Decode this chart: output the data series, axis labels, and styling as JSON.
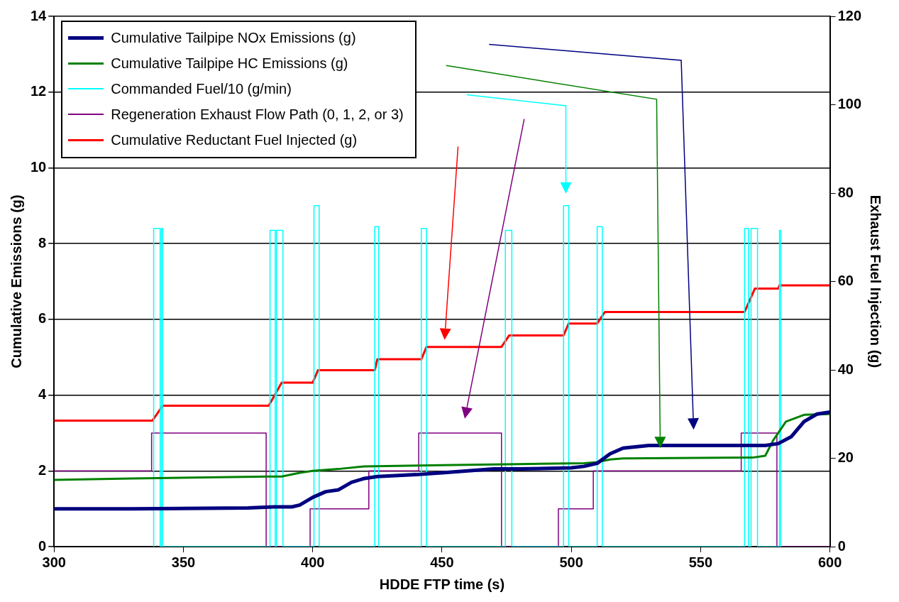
{
  "chart_data": {
    "type": "line",
    "xlabel": "HDDE FTP time (s)",
    "ylabel": "Cumulative Emissions (g)",
    "y2label": "Exhaust Fuel Injection (g)",
    "xlim": [
      300,
      600
    ],
    "xticks": [
      300,
      350,
      400,
      450,
      500,
      550,
      600
    ],
    "ylim": [
      0,
      14
    ],
    "yticks": [
      0,
      2,
      4,
      6,
      8,
      10,
      12,
      14
    ],
    "y2lim": [
      0,
      120
    ],
    "y2ticks": [
      0,
      20,
      40,
      60,
      80,
      100,
      120
    ],
    "grid": "y",
    "legend": "top left",
    "series": [
      {
        "name": "Cumulative Tailpipe NOx Emissions (g)",
        "color": "#000080",
        "x": [
          300,
          330,
          375,
          385,
          392,
          395,
          400,
          405,
          410,
          415,
          420,
          425,
          440,
          450,
          460,
          470,
          480,
          500,
          505,
          510,
          515,
          520,
          530,
          575,
          580,
          585,
          590,
          595,
          600
        ],
        "values": [
          1.0,
          1.0,
          1.02,
          1.05,
          1.05,
          1.1,
          1.3,
          1.45,
          1.5,
          1.7,
          1.8,
          1.85,
          1.9,
          1.95,
          2.0,
          2.05,
          2.05,
          2.08,
          2.12,
          2.2,
          2.45,
          2.6,
          2.67,
          2.67,
          2.72,
          2.9,
          3.3,
          3.5,
          3.55
        ]
      },
      {
        "name": "Cumulative Tailpipe HC Emissions (g)",
        "color": "#008000",
        "x": [
          300,
          330,
          383,
          388,
          395,
          400,
          410,
          420,
          450,
          480,
          505,
          510,
          515,
          520,
          570,
          575,
          578,
          583,
          590,
          600
        ],
        "values": [
          1.76,
          1.8,
          1.85,
          1.85,
          1.95,
          2.0,
          2.05,
          2.12,
          2.15,
          2.18,
          2.2,
          2.23,
          2.3,
          2.33,
          2.35,
          2.4,
          2.8,
          3.3,
          3.48,
          3.5
        ]
      },
      {
        "name": "Commanded Fuel/10 (g/min)",
        "color": "#00ffff",
        "x": [
          338.5,
          338.5,
          341,
          341,
          341.5,
          341.5,
          342,
          342,
          383.5,
          383.5,
          385.5,
          385.5,
          386,
          386,
          388.5,
          388.5,
          400.5,
          400.5,
          402.5,
          402.5,
          424,
          424,
          425.5,
          425.5,
          442,
          442,
          444,
          444,
          474.5,
          474.5,
          477,
          477,
          497,
          497,
          499,
          499,
          510,
          510,
          512,
          512,
          567,
          567,
          568.5,
          568.5,
          569.5,
          569.5,
          572,
          572,
          580.5,
          580.5,
          581,
          581
        ],
        "values": [
          0,
          8.4,
          8.4,
          0,
          0,
          8.4,
          8.4,
          0,
          0,
          8.35,
          8.35,
          0,
          0,
          8.35,
          8.35,
          0,
          0,
          9.0,
          9.0,
          0,
          0,
          8.45,
          8.45,
          0,
          0,
          8.4,
          8.4,
          0,
          0,
          8.35,
          8.35,
          0,
          0,
          9.0,
          9.0,
          0,
          0,
          8.45,
          8.45,
          0,
          0,
          8.4,
          8.4,
          0,
          0,
          8.4,
          8.4,
          0,
          0,
          8.35,
          8.35,
          0
        ]
      },
      {
        "name": "Regeneration Exhaust Flow Path (0, 1, 2, or 3)",
        "color": "#800080",
        "type": "step",
        "x": [
          300,
          337.7,
          382,
          399,
          421.7,
          441,
          473,
          495,
          508.5,
          565.7,
          579.5,
          600
        ],
        "values": [
          2,
          3,
          0,
          1,
          2,
          3,
          0,
          1,
          2,
          3,
          0,
          0
        ]
      },
      {
        "name": "Cumulative Reductant Fuel Injected (g)",
        "color": "#ff0000",
        "axis": "y2",
        "x": [
          300,
          338,
          342,
          383,
          388,
          400,
          402,
          424,
          425,
          442,
          444,
          473,
          476,
          497,
          499,
          510,
          513,
          567,
          571,
          580,
          580.5,
          600
        ],
        "values": [
          28.5,
          28.5,
          31.9,
          31.9,
          37.1,
          37.1,
          39.9,
          39.9,
          42.4,
          42.4,
          45.2,
          45.2,
          47.8,
          47.8,
          50.5,
          50.5,
          53.1,
          53.1,
          58.4,
          58.4,
          59.1,
          59.1
        ]
      }
    ]
  }
}
